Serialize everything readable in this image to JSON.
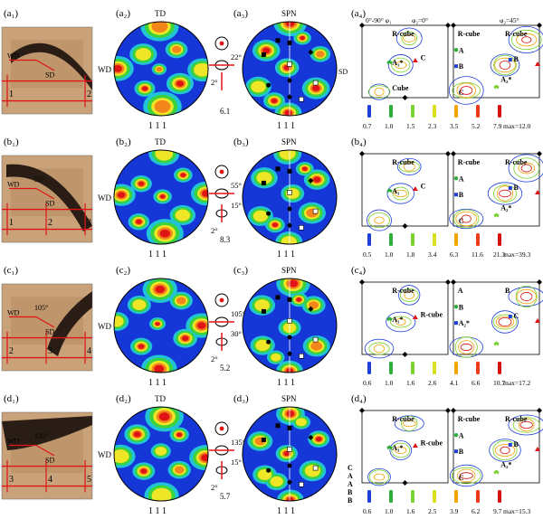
{
  "figure": {
    "rows": [
      {
        "panel_labels": [
          "(a₁)",
          "(a₂)",
          "(a₃)",
          "(a₄)"
        ],
        "photo_angle": "",
        "photo_numbers": [
          "1",
          "2"
        ],
        "photo_dirs": [
          "WD",
          "SD"
        ],
        "pf_top_a2": "TD",
        "pf_side": "WD",
        "pf_top_a3": "SPN",
        "pf_bottom": "1 1 1",
        "rot_top": "22°",
        "rot_bottom": "2°",
        "imax": "6.1",
        "odf_header": [
          "0°-90°  φ₁",
          "φ₂=0°",
          "φ₂=45°"
        ],
        "odf_axis": "Φ (0°-90°)",
        "odf_left_labels": [
          "R-cube",
          "A₁*",
          "C",
          "Cube"
        ],
        "odf_right_labels": [
          "R-cube",
          "R-cube",
          "A",
          "B",
          "B",
          "A₂*",
          "C"
        ],
        "odf_sd": "SD",
        "legend_values": [
          "0.7",
          "1.0",
          "1.5",
          "2.3",
          "3.5",
          "5.2",
          "7.9"
        ],
        "max_label": "max=12.0"
      },
      {
        "panel_labels": [
          "(b₁)",
          "(b₂)",
          "(b₃)",
          "(b₄)"
        ],
        "photo_angle": "55°",
        "photo_numbers": [
          "1",
          "2",
          "3"
        ],
        "photo_dirs": [
          "WD",
          "SD"
        ],
        "pf_top_a2": "TD",
        "pf_side": "WD",
        "pf_top_a3": "SPN",
        "pf_bottom": "1 1 1",
        "rot_top": "55°",
        "rot_mid": "15°",
        "rot_bottom": "2°",
        "imax": "8.3",
        "odf_left_labels": [
          "R-cube",
          "A₁",
          "C"
        ],
        "odf_right_labels": [
          "R-cube",
          "R-cube",
          "A",
          "B",
          "B",
          "A₂*",
          "C"
        ],
        "legend_values": [
          "0.5",
          "1.0",
          "1.8",
          "3.4",
          "6.3",
          "11.6",
          "21.3"
        ],
        "max_label": "max=39.3"
      },
      {
        "panel_labels": [
          "(c₁)",
          "(c₂)",
          "(c₃)",
          "(c₄)"
        ],
        "photo_angle": "105°",
        "photo_numbers": [
          "2",
          "3",
          "4"
        ],
        "photo_dirs": [
          "WD",
          "SD"
        ],
        "pf_top_a2": "",
        "pf_side": "WD",
        "pf_top_a3": "SPN",
        "pf_bottom": "1 1 1",
        "rot_top": "105°",
        "rot_mid": "30°",
        "rot_bottom": "2°",
        "imax": "5.2",
        "odf_left_labels": [
          "R-cube",
          "A₁*",
          "R-cube"
        ],
        "odf_right_labels": [
          "A",
          "B",
          "B",
          "A₂*",
          "C"
        ],
        "legend_values": [
          "0.6",
          "1.0",
          "1.6",
          "2.6",
          "4.1",
          "6.6",
          "10.7"
        ],
        "max_label": "max=17.2"
      },
      {
        "panel_labels": [
          "(d₁)",
          "(d₂)",
          "(d₃)",
          "(d₄)"
        ],
        "photo_angle": "135°",
        "photo_numbers": [
          "3",
          "4",
          "5"
        ],
        "photo_dirs": [
          "WD",
          "SD"
        ],
        "pf_top_a2": "TD",
        "pf_side": "WD",
        "pf_top_a3": "SPN",
        "pf_bottom": "1 1 1",
        "rot_top": "135°",
        "rot_mid": "15°",
        "rot_bottom": "2°",
        "imax": "5.7",
        "odf_left_labels": [
          "R-cube",
          "A₁*",
          "R-cube"
        ],
        "odf_right_labels": [
          "R-cube",
          "R-cube",
          "A",
          "B",
          "B",
          "A₂*",
          "C"
        ],
        "legend_values": [
          "0.6",
          "1.0",
          "1.6",
          "2.5",
          "3.9",
          "6.2",
          "9.7"
        ],
        "max_label": "max=15.3",
        "symbol_legend": [
          "C",
          "A",
          "A",
          "B",
          "B"
        ]
      }
    ],
    "legend_colors": [
      "#1f3fd6",
      "#2fae3c",
      "#7ad12f",
      "#d8e020",
      "#f2a400",
      "#ee3a1a",
      "#d41010"
    ],
    "pf_colors": {
      "bg": "#1637d8",
      "ring1": "#21c4d6",
      "ring2": "#3bd23b",
      "ring3": "#f0e628",
      "ring4": "#f2861a",
      "core": "#e01414"
    }
  }
}
